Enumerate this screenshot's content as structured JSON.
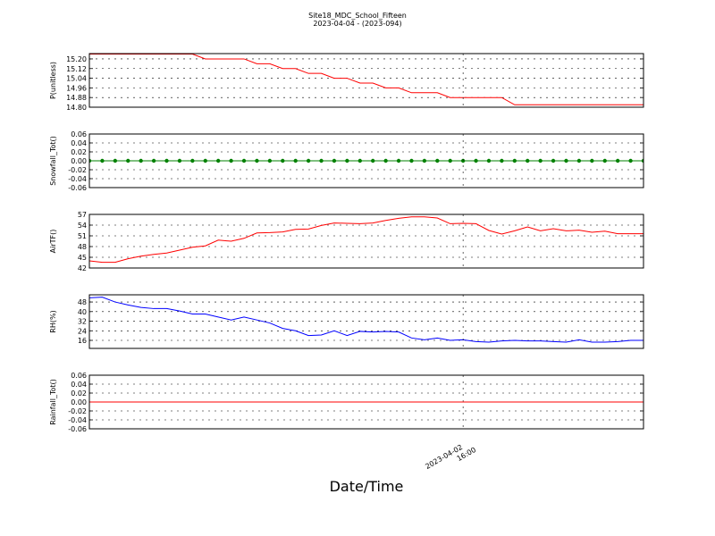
{
  "chart_data": [
    {
      "type": "line",
      "title": "Site18_MDC_School_Fifteen",
      "subtitle": "2023-04-04 - (2023-094)",
      "y_label": "P(unitless)",
      "color": "#ff0000",
      "grid": true,
      "values": [
        15.24,
        15.24,
        15.24,
        15.24,
        15.24,
        15.24,
        15.24,
        15.24,
        15.24,
        15.2,
        15.2,
        15.2,
        15.2,
        15.16,
        15.16,
        15.12,
        15.12,
        15.08,
        15.08,
        15.04,
        15.04,
        15.0,
        15.0,
        14.96,
        14.96,
        14.92,
        14.92,
        14.92,
        14.88,
        14.88,
        14.88,
        14.88,
        14.88,
        14.82,
        14.82,
        14.82,
        14.82,
        14.82,
        14.82,
        14.82,
        14.82,
        14.82,
        14.82,
        14.82
      ],
      "ylim": [
        14.8,
        15.244
      ],
      "yticks": [
        {
          "value": 14.8,
          "label": "14.80"
        },
        14.88,
        14.96,
        15.04,
        15.12,
        {
          "value": 15.2,
          "label": "15.20"
        }
      ]
    },
    {
      "type": "line",
      "y_label": "Snowfall_Tot()",
      "color": "#008000",
      "markers": true,
      "grid": true,
      "values": [
        0,
        0,
        0,
        0,
        0,
        0,
        0,
        0,
        0,
        0,
        0,
        0,
        0,
        0,
        0,
        0,
        0,
        0,
        0,
        0,
        0,
        0,
        0,
        0,
        0,
        0,
        0,
        0,
        0,
        0,
        0,
        0,
        0,
        0,
        0,
        0,
        0,
        0,
        0,
        0,
        0,
        0,
        0,
        0
      ],
      "ylim": [
        -0.06,
        0.06
      ],
      "yticks": [
        -0.06,
        -0.04,
        -0.02,
        {
          "value": 0,
          "label": "0.00"
        },
        0.02,
        0.04,
        0.06
      ]
    },
    {
      "type": "line",
      "y_label": "AirTF()",
      "color": "#ff0000",
      "grid": true,
      "values": [
        44.0,
        43.6,
        43.6,
        44.6,
        45.3,
        45.8,
        46.2,
        47.0,
        47.8,
        48.2,
        49.8,
        49.5,
        50.3,
        51.8,
        51.9,
        52.1,
        52.8,
        52.9,
        53.9,
        54.6,
        54.5,
        54.4,
        54.6,
        55.3,
        55.9,
        56.3,
        56.3,
        56.0,
        54.4,
        54.5,
        54.4,
        52.5,
        51.5,
        52.4,
        53.5,
        52.4,
        53.0,
        52.4,
        52.6,
        52.0,
        52.3,
        51.6,
        51.6,
        51.6
      ],
      "ylim": [
        42,
        57
      ],
      "yticks": [
        42,
        45,
        48,
        51,
        54,
        57
      ]
    },
    {
      "type": "line",
      "y_label": "RH(%)",
      "color": "#0000ff",
      "grid": true,
      "values": [
        51.5,
        52,
        48,
        45.5,
        43.5,
        42.5,
        42.5,
        40.5,
        38,
        38,
        35.5,
        33,
        35.5,
        33,
        30.5,
        26,
        24,
        20,
        20.5,
        24,
        20,
        23.5,
        23,
        23.5,
        23,
        18,
        16.5,
        18,
        16,
        16.5,
        15,
        14.5,
        15.5,
        16,
        15.5,
        15.5,
        15,
        14.5,
        16.5,
        14.5,
        14.5,
        15,
        16,
        16
      ],
      "ylim": [
        9.3,
        54
      ],
      "yticks": [
        16,
        24,
        32,
        40,
        48
      ]
    },
    {
      "type": "line",
      "y_label": "Rainfall_Tot()",
      "x_label": "Date/Time",
      "color": "#ff0000",
      "grid": true,
      "values": [
        0,
        0,
        0,
        0,
        0,
        0,
        0,
        0,
        0,
        0,
        0,
        0,
        0,
        0,
        0,
        0,
        0,
        0,
        0,
        0,
        0,
        0,
        0,
        0,
        0,
        0,
        0,
        0,
        0,
        0,
        0,
        0,
        0,
        0,
        0,
        0,
        0,
        0,
        0,
        0,
        0,
        0,
        0,
        0
      ],
      "categories": [
        null,
        null,
        null,
        null,
        null,
        null,
        null,
        null,
        null,
        null,
        null,
        null,
        null,
        null,
        null,
        null,
        null,
        null,
        null,
        null,
        null,
        null,
        null,
        null,
        null,
        null,
        null,
        null,
        null,
        "2023-04-02\n16:00",
        null,
        null,
        null,
        null,
        null,
        null,
        null,
        null,
        null,
        null,
        null,
        null,
        null,
        null
      ],
      "ylim": [
        -0.06,
        0.06
      ],
      "yticks": [
        -0.06,
        -0.04,
        -0.02,
        {
          "value": 0,
          "label": "0.00"
        },
        0.02,
        0.04,
        0.06
      ]
    }
  ]
}
